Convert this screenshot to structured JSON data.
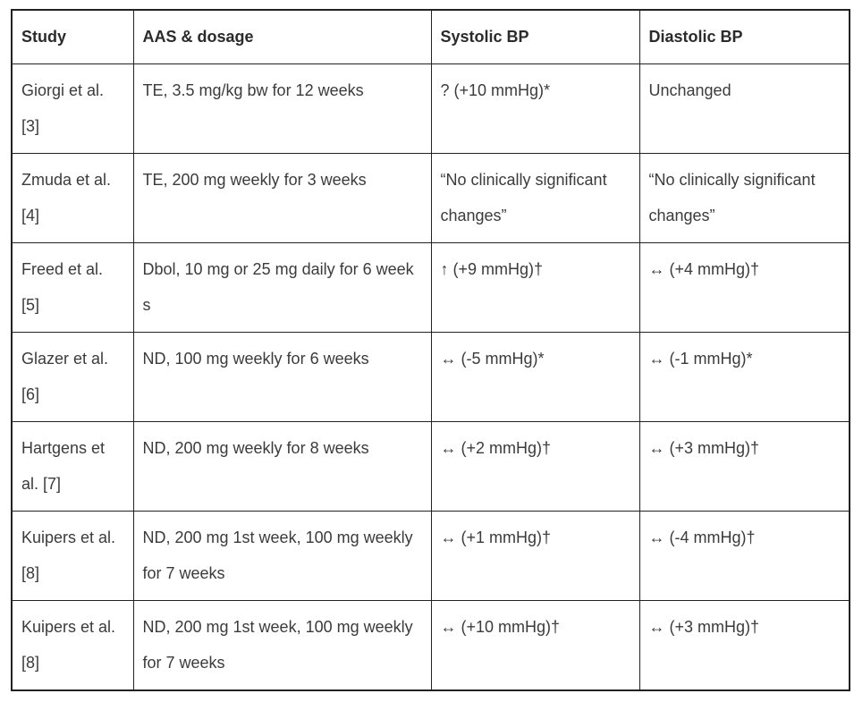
{
  "page": {
    "background_color": "#ffffff"
  },
  "table": {
    "style": {
      "border_color": "#222222",
      "text_color": "#3b3b3b",
      "header_text_color": "#2b2b2b"
    },
    "headers": {
      "study": "Study",
      "dosage": "AAS & dosage",
      "systolic": "Systolic BP",
      "diastolic": "Diastolic BP"
    },
    "rows": [
      {
        "study": "Giorgi et al. [3]",
        "dosage": "TE, 3.5 mg/kg bw for 12 weeks",
        "systolic": "? (+10 mmHg)*",
        "diastolic": "Unchanged"
      },
      {
        "study": "Zmuda et al. [4]",
        "dosage": "TE, 200 mg weekly for 3 weeks",
        "systolic": "“No clinically significant changes”",
        "diastolic": "“No clinically significant changes”"
      },
      {
        "study": "Freed et al. [5]",
        "dosage": "Dbol, 10 mg or 25 mg daily for 6 weeks",
        "systolic": "↑ (+9 mmHg)†",
        "diastolic": "↔ (+4 mmHg)†"
      },
      {
        "study": "Glazer et al. [6]",
        "dosage": "ND, 100 mg weekly for 6 weeks",
        "systolic": "↔ (-5 mmHg)*",
        "diastolic": "↔ (-1 mmHg)*"
      },
      {
        "study": "Hartgens et al. [7]",
        "dosage": "ND, 200 mg weekly for 8 weeks",
        "systolic": "↔ (+2 mmHg)†",
        "diastolic": "↔ (+3 mmHg)†"
      },
      {
        "study": "Kuipers et al. [8]",
        "dosage": "ND, 200 mg 1st week, 100 mg weekly for 7 weeks",
        "systolic": "↔ (+1 mmHg)†",
        "diastolic": "↔ (-4 mmHg)†"
      },
      {
        "study": "Kuipers et al. [8]",
        "dosage": "ND, 200 mg 1st week, 100 mg weekly for 7 weeks",
        "systolic": "↔ (+10 mmHg)†",
        "diastolic": "↔ (+3 mmHg)†"
      }
    ]
  }
}
